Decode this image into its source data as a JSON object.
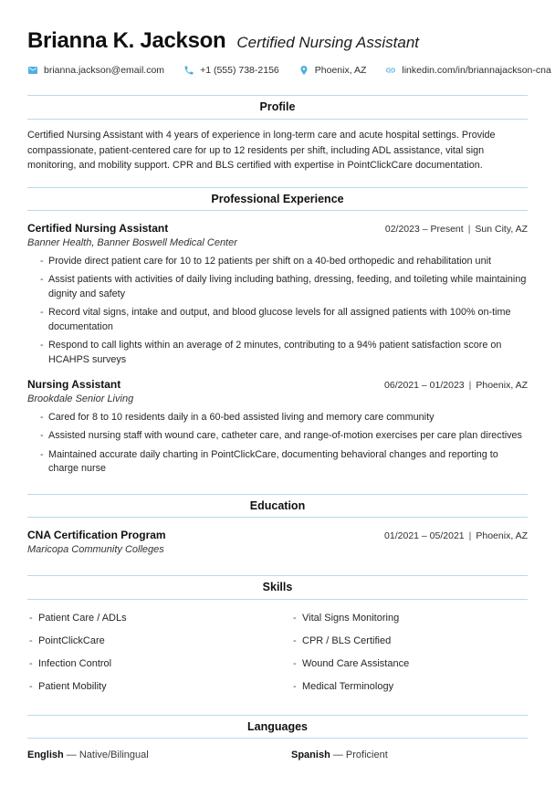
{
  "header": {
    "name": "Brianna K. Jackson",
    "title": "Certified Nursing Assistant",
    "contacts": [
      {
        "icon": "email-icon",
        "text": "brianna.jackson@email.com"
      },
      {
        "icon": "phone-icon",
        "text": "+1 (555) 738-2156"
      },
      {
        "icon": "location-icon",
        "text": "Phoenix, AZ"
      },
      {
        "icon": "link-icon",
        "text": "linkedin.com/in/briannajackson-cna"
      }
    ]
  },
  "sections": {
    "profile": {
      "title": "Profile",
      "text": "Certified Nursing Assistant with 4 years of experience in long-term care and acute hospital settings. Provide compassionate, patient-centered care for up to 12 residents per shift, including ADL assistance, vital sign monitoring, and mobility support. CPR and BLS certified with expertise in PointClickCare documentation."
    },
    "experience": {
      "title": "Professional Experience",
      "jobs": [
        {
          "role": "Certified Nursing Assistant",
          "dates": "02/2023 – Present",
          "location": "Sun City, AZ",
          "company": "Banner Health, Banner Boswell Medical Center",
          "bullets": [
            "Provide direct patient care for 10 to 12 patients per shift on a 40-bed orthopedic and rehabilitation unit",
            "Assist patients with activities of daily living including bathing, dressing, feeding, and toileting while maintaining dignity and safety",
            "Record vital signs, intake and output, and blood glucose levels for all assigned patients with 100% on-time documentation",
            "Respond to call lights within an average of 2 minutes, contributing to a 94% patient satisfaction score on HCAHPS surveys"
          ]
        },
        {
          "role": "Nursing Assistant",
          "dates": "06/2021 – 01/2023",
          "location": "Phoenix, AZ",
          "company": "Brookdale Senior Living",
          "bullets": [
            "Cared for 8 to 10 residents daily in a 60-bed assisted living and memory care community",
            "Assisted nursing staff with wound care, catheter care, and range-of-motion exercises per care plan directives",
            "Maintained accurate daily charting in PointClickCare, documenting behavioral changes and reporting to charge nurse"
          ]
        }
      ]
    },
    "education": {
      "title": "Education",
      "entries": [
        {
          "program": "CNA Certification Program",
          "dates": "01/2021 – 05/2021",
          "location": "Phoenix, AZ",
          "school": "Maricopa Community Colleges"
        }
      ]
    },
    "skills": {
      "title": "Skills",
      "left": [
        "Patient Care / ADLs",
        "PointClickCare",
        "Infection Control",
        "Patient Mobility"
      ],
      "right": [
        "Vital Signs Monitoring",
        "CPR / BLS Certified",
        "Wound Care Assistance",
        "Medical Terminology"
      ]
    },
    "languages": {
      "title": "Languages",
      "items": [
        {
          "language": "English",
          "level": "Native/Bilingual"
        },
        {
          "language": "Spanish",
          "level": "Proficient"
        }
      ]
    }
  },
  "separators": {
    "date_location": "|",
    "language_level": "—"
  },
  "colors": {
    "accent_blue": "#4fafe1",
    "divider_blue": "#b5dbee",
    "text_dark": "#111111"
  }
}
